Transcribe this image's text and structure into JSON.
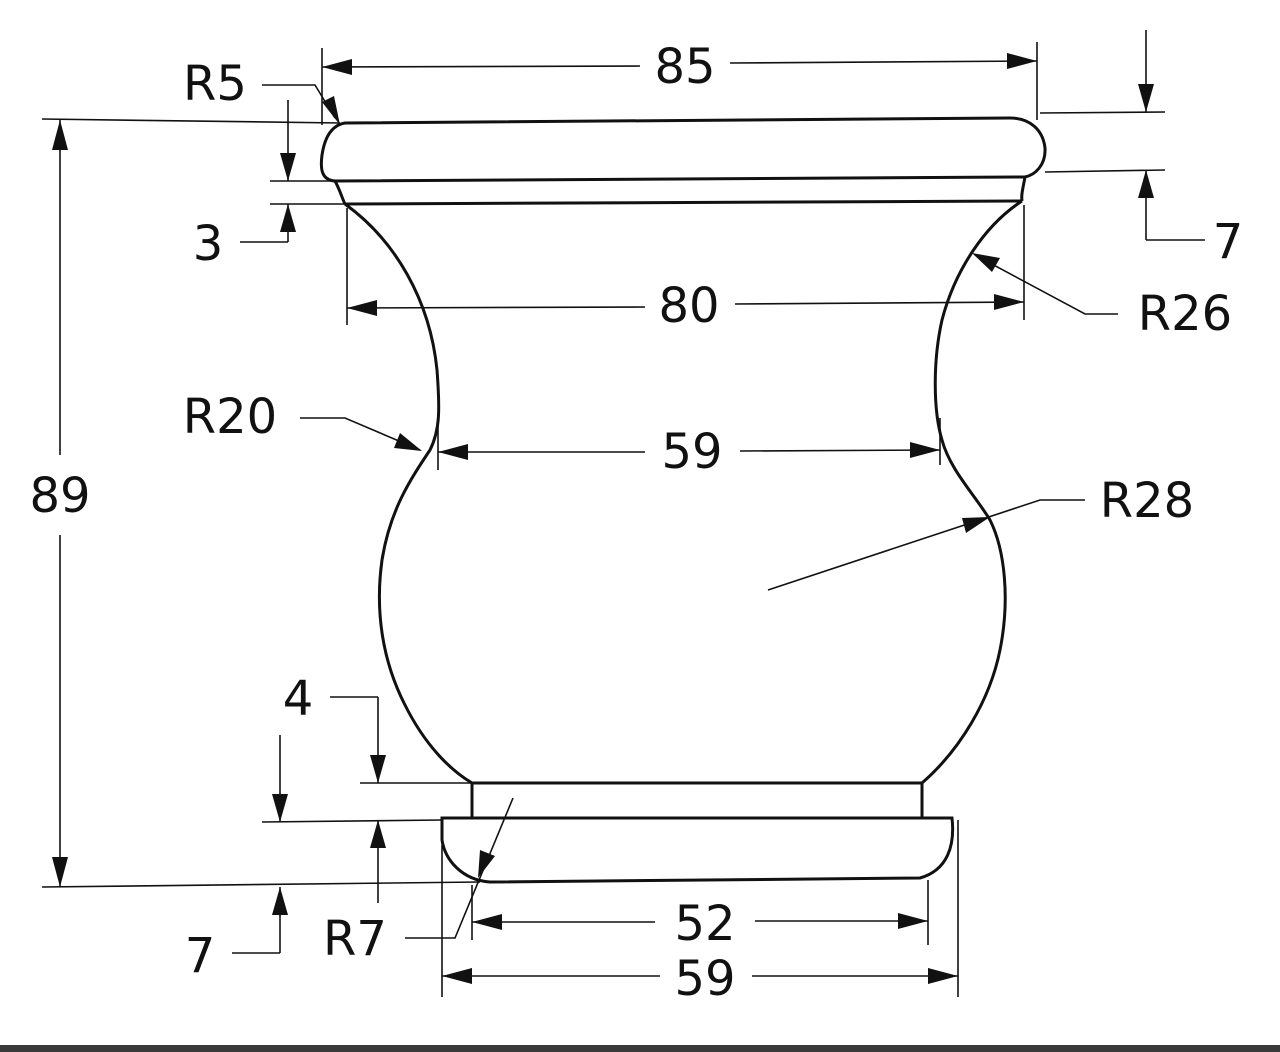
{
  "dimensions": {
    "top_width": "85",
    "neck_width": "80",
    "waist_width": "59",
    "base_inner_width": "52",
    "base_outer_width": "59",
    "overall_height": "89",
    "rim_gap": "3",
    "rim_height": "7",
    "foot_step": "4",
    "foot_height": "7"
  },
  "radii": {
    "rim_corner": "R5",
    "neck": "R26",
    "waist": "R20",
    "bulb": "R28",
    "foot_corner": "R7"
  }
}
